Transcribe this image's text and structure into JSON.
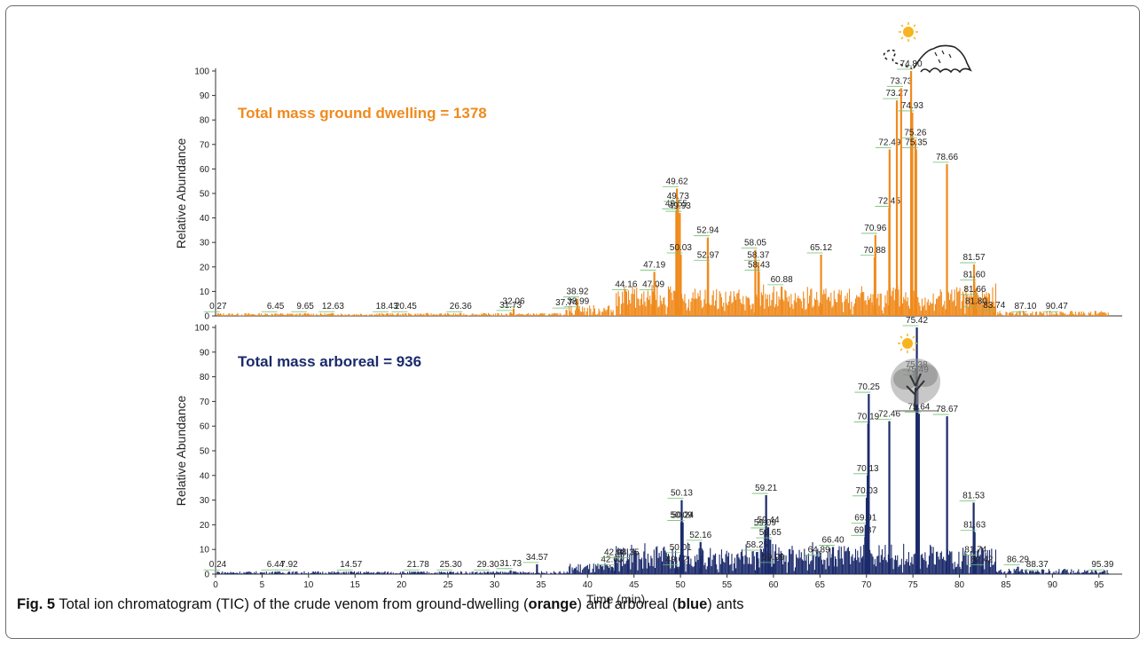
{
  "chart_data": [
    {
      "type": "line",
      "name_ref": "ground",
      "xlabel": "",
      "ylabel": "Relative Abundance",
      "xlim": [
        0,
        97.5
      ],
      "ylim": [
        0,
        100
      ],
      "yticks": [
        "0",
        "10",
        "20",
        "30",
        "40",
        "50",
        "60",
        "70",
        "80",
        "90",
        "100"
      ],
      "color": "#f08a1c",
      "annotation": "Total mass ground dwelling = 1378",
      "peaks": [
        {
          "x": 0.27,
          "y": 1
        },
        {
          "x": 6.45,
          "y": 1
        },
        {
          "x": 9.65,
          "y": 1
        },
        {
          "x": 12.63,
          "y": 1
        },
        {
          "x": 18.43,
          "y": 1
        },
        {
          "x": 20.45,
          "y": 1
        },
        {
          "x": 26.36,
          "y": 1
        },
        {
          "x": 31.73,
          "y": 1.5
        },
        {
          "x": 32.06,
          "y": 3
        },
        {
          "x": 37.74,
          "y": 2.5
        },
        {
          "x": 38.92,
          "y": 7
        },
        {
          "x": 38.99,
          "y": 3
        },
        {
          "x": 44.16,
          "y": 10
        },
        {
          "x": 47.09,
          "y": 10
        },
        {
          "x": 47.19,
          "y": 18
        },
        {
          "x": 49.55,
          "y": 43
        },
        {
          "x": 49.62,
          "y": 52
        },
        {
          "x": 49.73,
          "y": 46
        },
        {
          "x": 49.93,
          "y": 42
        },
        {
          "x": 50.03,
          "y": 25
        },
        {
          "x": 52.94,
          "y": 32
        },
        {
          "x": 52.97,
          "y": 22
        },
        {
          "x": 58.05,
          "y": 27
        },
        {
          "x": 58.37,
          "y": 22
        },
        {
          "x": 58.43,
          "y": 18
        },
        {
          "x": 60.88,
          "y": 12
        },
        {
          "x": 65.12,
          "y": 25
        },
        {
          "x": 70.88,
          "y": 24
        },
        {
          "x": 70.96,
          "y": 33
        },
        {
          "x": 72.45,
          "y": 44
        },
        {
          "x": 72.49,
          "y": 68
        },
        {
          "x": 73.27,
          "y": 88
        },
        {
          "x": 73.73,
          "y": 93
        },
        {
          "x": 74.8,
          "y": 100
        },
        {
          "x": 74.93,
          "y": 83
        },
        {
          "x": 75.26,
          "y": 72
        },
        {
          "x": 75.35,
          "y": 68
        },
        {
          "x": 78.66,
          "y": 62
        },
        {
          "x": 81.57,
          "y": 21
        },
        {
          "x": 81.6,
          "y": 14
        },
        {
          "x": 81.66,
          "y": 8
        },
        {
          "x": 81.8,
          "y": 3
        },
        {
          "x": 83.74,
          "y": 1.5
        },
        {
          "x": 87.1,
          "y": 1
        },
        {
          "x": 90.47,
          "y": 1
        }
      ]
    },
    {
      "type": "line",
      "name_ref": "arboreal",
      "xlabel": "Time (min)",
      "ylabel": "Relative Abundance",
      "xlim": [
        0,
        97.5
      ],
      "ylim": [
        0,
        100
      ],
      "xticks": [
        "0",
        "5",
        "10",
        "15",
        "20",
        "25",
        "30",
        "35",
        "40",
        "45",
        "50",
        "55",
        "60",
        "65",
        "70",
        "75",
        "80",
        "85",
        "90",
        "95"
      ],
      "yticks": [
        "0",
        "10",
        "20",
        "30",
        "40",
        "50",
        "60",
        "70",
        "80",
        "90",
        "100"
      ],
      "color": "#1b2a6b",
      "annotation": "Total mass arboreal = 936",
      "peaks": [
        {
          "x": 0.24,
          "y": 1
        },
        {
          "x": 6.44,
          "y": 1
        },
        {
          "x": 7.92,
          "y": 1
        },
        {
          "x": 14.57,
          "y": 1
        },
        {
          "x": 21.78,
          "y": 1
        },
        {
          "x": 25.3,
          "y": 1
        },
        {
          "x": 29.3,
          "y": 1
        },
        {
          "x": 31.73,
          "y": 1.5
        },
        {
          "x": 34.57,
          "y": 4
        },
        {
          "x": 42.63,
          "y": 3
        },
        {
          "x": 42.98,
          "y": 6
        },
        {
          "x": 44.35,
          "y": 6
        },
        {
          "x": 49.62,
          "y": 3
        },
        {
          "x": 50.01,
          "y": 8
        },
        {
          "x": 50.09,
          "y": 21
        },
        {
          "x": 50.13,
          "y": 30
        },
        {
          "x": 50.24,
          "y": 21
        },
        {
          "x": 52.16,
          "y": 13
        },
        {
          "x": 58.25,
          "y": 9
        },
        {
          "x": 59.09,
          "y": 18
        },
        {
          "x": 59.21,
          "y": 32
        },
        {
          "x": 59.44,
          "y": 19
        },
        {
          "x": 59.65,
          "y": 14
        },
        {
          "x": 59.99,
          "y": 4
        },
        {
          "x": 64.89,
          "y": 7
        },
        {
          "x": 66.4,
          "y": 11
        },
        {
          "x": 69.87,
          "y": 15
        },
        {
          "x": 69.91,
          "y": 20
        },
        {
          "x": 70.03,
          "y": 31
        },
        {
          "x": 70.13,
          "y": 40
        },
        {
          "x": 70.19,
          "y": 61
        },
        {
          "x": 70.25,
          "y": 73
        },
        {
          "x": 72.46,
          "y": 62
        },
        {
          "x": 75.38,
          "y": 82
        },
        {
          "x": 75.42,
          "y": 100
        },
        {
          "x": 75.49,
          "y": 80
        },
        {
          "x": 75.64,
          "y": 65
        },
        {
          "x": 78.67,
          "y": 64
        },
        {
          "x": 81.53,
          "y": 29
        },
        {
          "x": 81.63,
          "y": 17
        },
        {
          "x": 81.74,
          "y": 7
        },
        {
          "x": 82.42,
          "y": 3
        },
        {
          "x": 86.29,
          "y": 3
        },
        {
          "x": 88.37,
          "y": 1
        },
        {
          "x": 95.39,
          "y": 1
        }
      ]
    }
  ],
  "caption": {
    "fig": "Fig. 5",
    "text1": " Total ion chromatogram (TIC) of the crude venom from ground-dwelling (",
    "bold1": "orange",
    "text2": ") and arboreal (",
    "bold2": "blue",
    "text3": ") ants"
  },
  "icons": [
    "ant-hill-icon",
    "tree-icon",
    "sun-icon"
  ]
}
